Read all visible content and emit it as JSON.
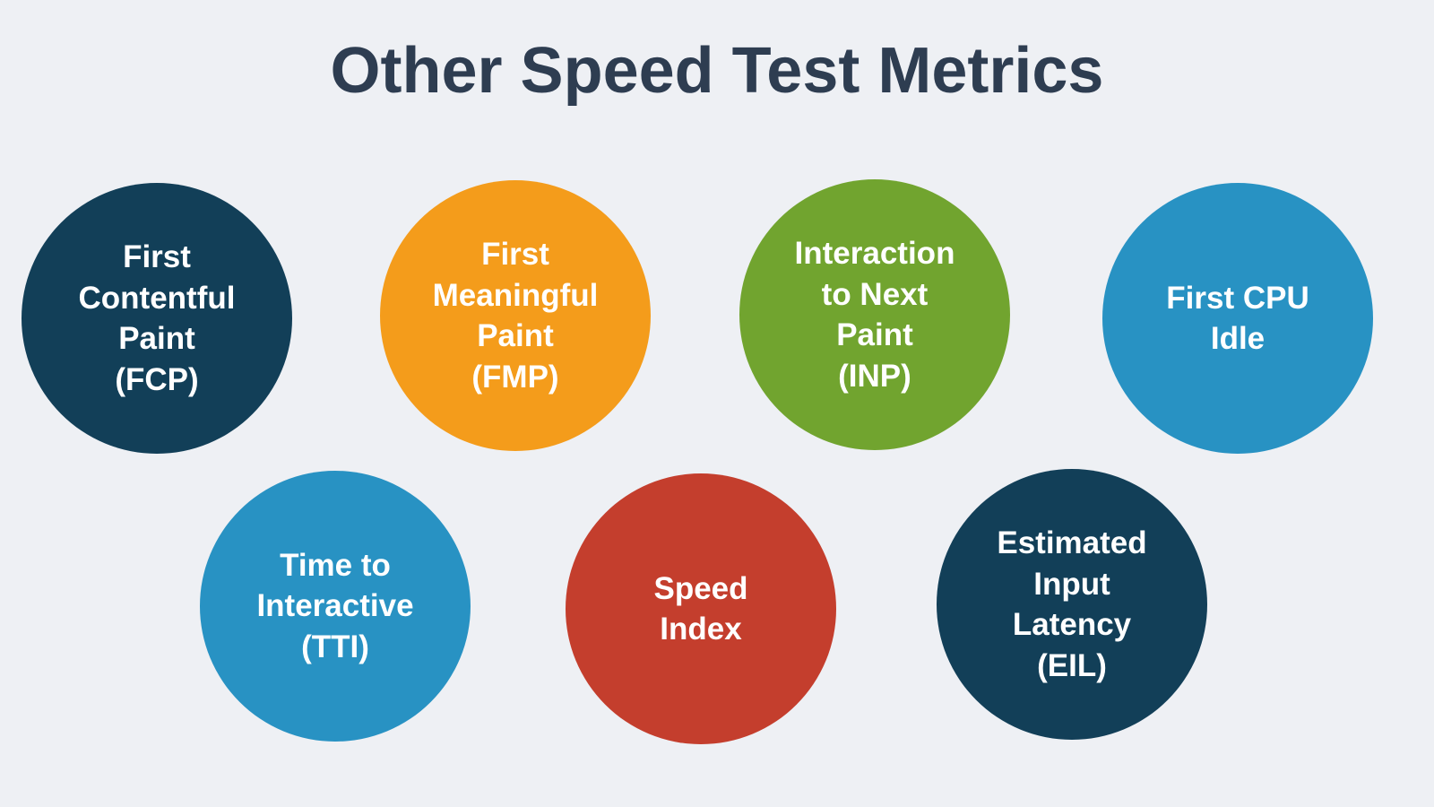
{
  "title": "Other Speed Test Metrics",
  "colors": {
    "background": "#eef0f4",
    "title_text": "#2e3d51",
    "circle_text": "#ffffff",
    "navy": "#123f58",
    "orange": "#f49c1b",
    "green": "#71a42f",
    "blue": "#2892c3",
    "red": "#c43e2d"
  },
  "circles": [
    {
      "id": "fcp",
      "label": "First\nContentful\nPaint\n(FCP)",
      "full_name": "First Contentful Paint",
      "abbreviation": "FCP",
      "color": "#123f58"
    },
    {
      "id": "fmp",
      "label": "First\nMeaningful\nPaint\n(FMP)",
      "full_name": "First Meaningful Paint",
      "abbreviation": "FMP",
      "color": "#f49c1b"
    },
    {
      "id": "inp",
      "label": "Interaction\nto Next\nPaint\n(INP)",
      "full_name": "Interaction to Next Paint",
      "abbreviation": "INP",
      "color": "#71a42f"
    },
    {
      "id": "first-cpu-idle",
      "label": "First CPU\nIdle",
      "full_name": "First CPU Idle",
      "abbreviation": "",
      "color": "#2892c3"
    },
    {
      "id": "tti",
      "label": "Time to\nInteractive\n(TTI)",
      "full_name": "Time to Interactive",
      "abbreviation": "TTI",
      "color": "#2892c3"
    },
    {
      "id": "speed-index",
      "label": "Speed\nIndex",
      "full_name": "Speed Index",
      "abbreviation": "",
      "color": "#c43e2d"
    },
    {
      "id": "eil",
      "label": "Estimated\nInput\nLatency\n(EIL)",
      "full_name": "Estimated Input Latency",
      "abbreviation": "EIL",
      "color": "#123f58"
    }
  ]
}
